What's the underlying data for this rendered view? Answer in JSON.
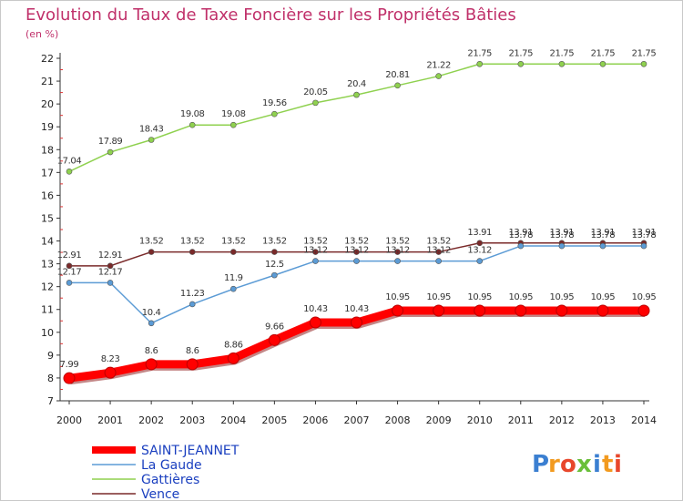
{
  "chart_data": {
    "type": "line",
    "title": "Evolution du Taux de Taxe Foncière sur les Propriétés Bâties",
    "subtitle": "(en %)",
    "x": [
      "2000",
      "2001",
      "2002",
      "2003",
      "2004",
      "2005",
      "2006",
      "2007",
      "2008",
      "2009",
      "2010",
      "2011",
      "2012",
      "2013",
      "2014"
    ],
    "ylim": [
      7,
      22
    ],
    "yticks": [
      7,
      8,
      9,
      10,
      11,
      12,
      13,
      14,
      15,
      16,
      17,
      18,
      19,
      20,
      21,
      22
    ],
    "grid": false,
    "legend_position": "bottom-left",
    "series": [
      {
        "name": "SAINT-JEANNET",
        "color": "#ff0000",
        "values": [
          7.99,
          8.23,
          8.6,
          8.6,
          8.86,
          9.66,
          10.43,
          10.43,
          10.95,
          10.95,
          10.95,
          10.95,
          10.95,
          10.95,
          10.95
        ],
        "labels": [
          "7.99",
          "8.23",
          "8.6",
          "8.6",
          "8.86",
          "9.66",
          "10.43",
          "10.43",
          "10.95",
          "10.95",
          "10.95",
          "10.95",
          "10.95",
          "10.95",
          "10.95"
        ]
      },
      {
        "name": "La Gaude",
        "color": "#5b9bd5",
        "values": [
          12.17,
          12.17,
          10.4,
          11.23,
          11.9,
          12.5,
          13.12,
          13.12,
          13.12,
          13.12,
          13.12,
          13.78,
          13.78,
          13.78,
          13.78
        ],
        "labels": [
          "12.17",
          "12.17",
          "10.4",
          "11.23",
          "11.9",
          "12.5",
          "13.12",
          "13.12",
          "13.12",
          "13.12",
          "13.12",
          "13.78",
          "13.78",
          "13.78",
          "13.78"
        ]
      },
      {
        "name": "Gattières",
        "color": "#8fd14f",
        "values": [
          17.04,
          17.89,
          18.43,
          19.08,
          19.08,
          19.56,
          20.05,
          20.4,
          20.81,
          21.22,
          21.75,
          21.75,
          21.75,
          21.75,
          21.75
        ],
        "labels": [
          "17.04",
          "17.89",
          "18.43",
          "19.08",
          "19.08",
          "19.56",
          "20.05",
          "20.4",
          "20.81",
          "21.22",
          "21.75",
          "21.75",
          "21.75",
          "21.75",
          "21.75"
        ]
      },
      {
        "name": "Vence",
        "color": "#7a2a2a",
        "values": [
          12.91,
          12.91,
          13.52,
          13.52,
          13.52,
          13.52,
          13.52,
          13.52,
          13.52,
          13.52,
          13.91,
          13.91,
          13.91,
          13.91,
          13.91
        ],
        "labels": [
          "12.91",
          "12.91",
          "13.52",
          "13.52",
          "13.52",
          "13.52",
          "13.52",
          "13.52",
          "13.52",
          "13.52",
          "13.91",
          "13.91",
          "13.91",
          "13.91",
          "13.91"
        ]
      }
    ]
  },
  "logo": {
    "text": "Proxiti",
    "letters": [
      "P",
      "r",
      "o",
      "x",
      "i",
      "t",
      "i"
    ],
    "colors": [
      "#3b7fd1",
      "#f29a1f",
      "#e8472c",
      "#6abf3a",
      "#3b7fd1",
      "#f29a1f",
      "#e8472c"
    ]
  }
}
